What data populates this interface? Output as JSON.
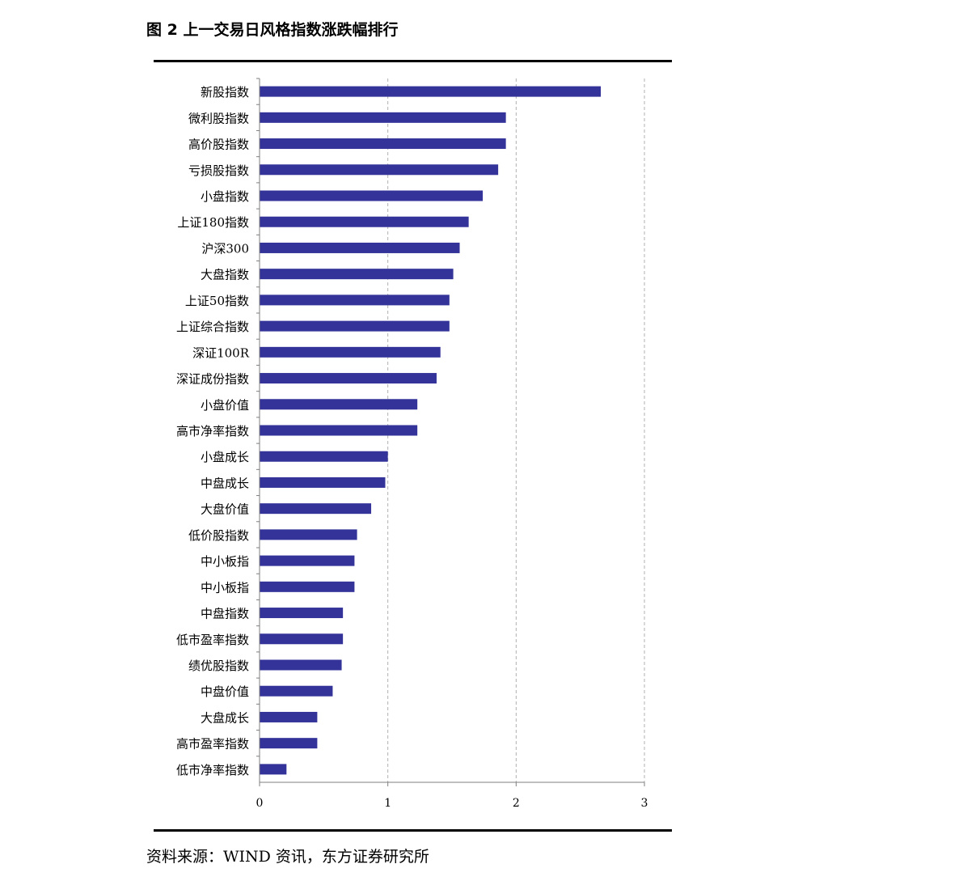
{
  "figure": {
    "title": "图 2 上一交易日风格指数涨跌幅排行",
    "source": "资料来源：WIND 资讯，东方证券研究所"
  },
  "colors": {
    "bar": "#333399",
    "grid": "#b0b0b0",
    "axis": "#7f7f7f"
  },
  "chart_data": {
    "type": "bar",
    "orientation": "horizontal",
    "categories": [
      "新股指数",
      "微利股指数",
      "高价股指数",
      "亏损股指数",
      "小盘指数",
      "上证180指数",
      "沪深300",
      "大盘指数",
      "上证50指数",
      "上证综合指数",
      "深证100R",
      "深证成份指数",
      "小盘价值",
      "高市净率指数",
      "小盘成长",
      "中盘成长",
      "大盘价值",
      "低价股指数",
      "中小板指",
      "中小板指",
      "中盘指数",
      "低市盈率指数",
      "绩优股指数",
      "中盘价值",
      "大盘成长",
      "高市盈率指数",
      "低市净率指数"
    ],
    "values": [
      2.66,
      1.92,
      1.92,
      1.86,
      1.74,
      1.63,
      1.56,
      1.51,
      1.48,
      1.48,
      1.41,
      1.38,
      1.23,
      1.23,
      1.0,
      0.98,
      0.87,
      0.76,
      0.74,
      0.74,
      0.65,
      0.65,
      0.64,
      0.57,
      0.45,
      0.45,
      0.21
    ],
    "xticks": [
      "0",
      "1",
      "2",
      "3"
    ],
    "xlim": [
      0,
      3
    ],
    "grid": "vertical-dashed",
    "legend": "none"
  }
}
